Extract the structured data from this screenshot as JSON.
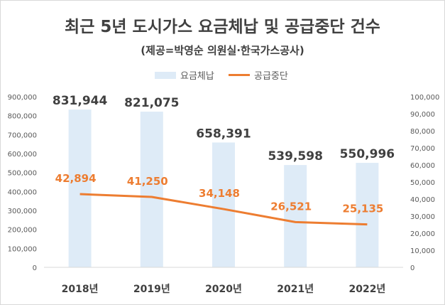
{
  "chart_data": {
    "type": "bar",
    "title": "최근 5년 도시가스 요금체납 및 공급중단 건수",
    "subtitle": "(제공=박영순 의원실·한국가스공사)",
    "categories": [
      "2018년",
      "2019년",
      "2020년",
      "2021년",
      "2022년"
    ],
    "series": [
      {
        "name": "요금체납",
        "type": "bar",
        "axis": "left",
        "color": "#deebf7",
        "values": [
          831944,
          821075,
          658391,
          539598,
          550996
        ],
        "labels": [
          "831,944",
          "821,075",
          "658,391",
          "539,598",
          "550,996"
        ]
      },
      {
        "name": "공급중단",
        "type": "line",
        "axis": "right",
        "color": "#ed7d31",
        "values": [
          42894,
          41250,
          34148,
          26521,
          25135
        ],
        "labels": [
          "42,894",
          "41,250",
          "34,148",
          "26,521",
          "25,135"
        ]
      }
    ],
    "y_left": {
      "range": [
        0,
        900000
      ],
      "ticks": [
        "0",
        "100,000",
        "200,000",
        "300,000",
        "400,000",
        "500,000",
        "600,000",
        "700,000",
        "800,000",
        "900,000"
      ]
    },
    "y_right": {
      "range": [
        0,
        100000
      ],
      "ticks": [
        "0",
        "10,000",
        "20,000",
        "30,000",
        "40,000",
        "50,000",
        "60,000",
        "70,000",
        "80,000",
        "90,000",
        "100,000"
      ]
    },
    "legend_position": "top",
    "grid": false
  }
}
